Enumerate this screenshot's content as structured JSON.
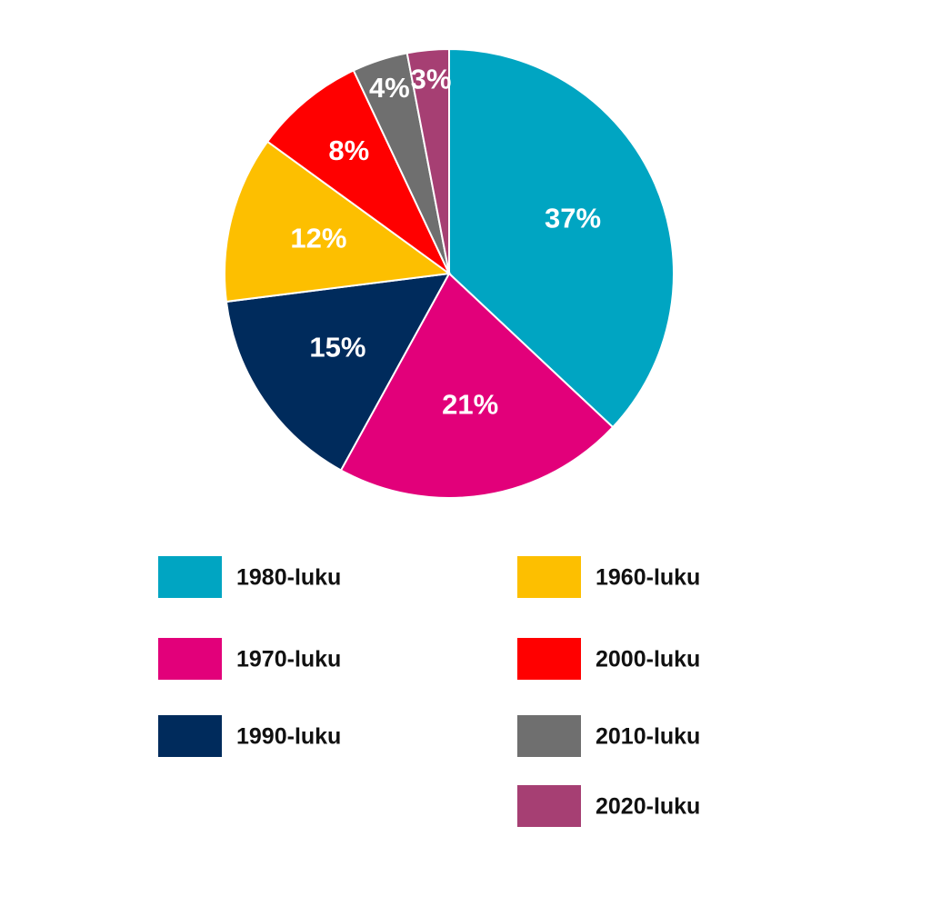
{
  "chart_data": {
    "type": "pie",
    "categories": [
      "1980-luku",
      "1970-luku",
      "1990-luku",
      "1960-luku",
      "2000-luku",
      "2010-luku",
      "2020-luku"
    ],
    "values": [
      37,
      21,
      15,
      12,
      8,
      4,
      3
    ],
    "value_labels": [
      "37%",
      "21%",
      "15%",
      "12%",
      "8%",
      "4%",
      "3%"
    ],
    "colors": [
      "#00a5c2",
      "#e2007a",
      "#002b5c",
      "#fdbf00",
      "#ff0000",
      "#6f6f6f",
      "#a63f73"
    ],
    "legend": "bottom"
  }
}
